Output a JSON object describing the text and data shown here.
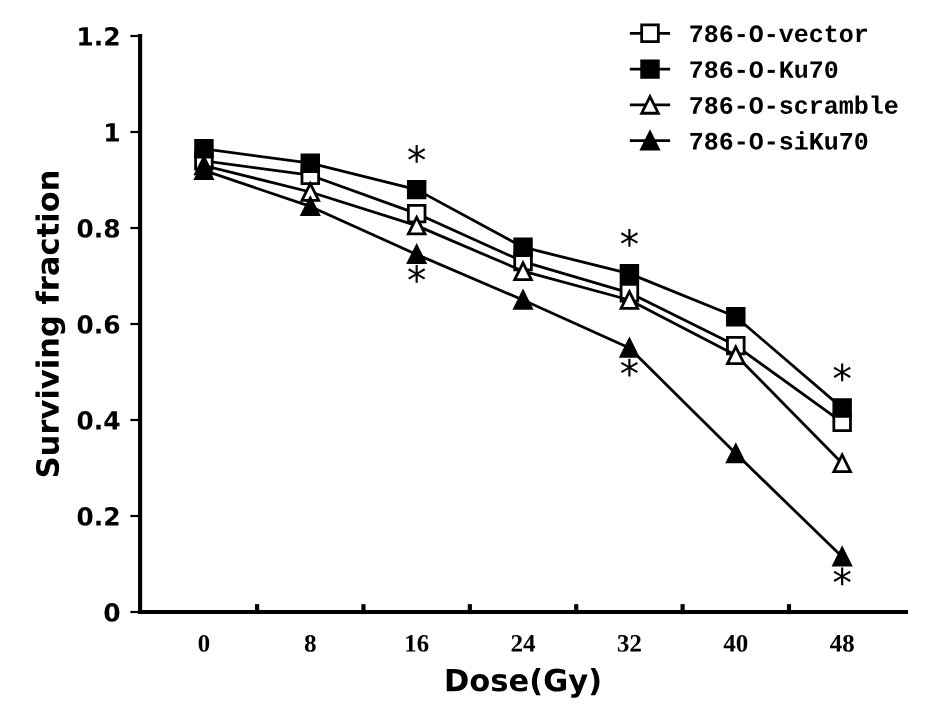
{
  "chart_data": {
    "type": "line",
    "xlabel": "Dose(Gy)",
    "ylabel": "Surviving fraction",
    "categories": [
      "0",
      "8",
      "16",
      "24",
      "32",
      "40",
      "48"
    ],
    "ylim": [
      0,
      1.2
    ],
    "yticks": [
      0,
      0.2,
      0.4,
      0.6,
      0.8,
      1,
      1.2
    ],
    "grid": false,
    "legend": "top right",
    "line_style": "solid",
    "series": [
      {
        "name": "786-O-vector",
        "color": "#000000",
        "marker": "square",
        "values": [
          0.94,
          0.91,
          0.83,
          0.73,
          0.665,
          0.555,
          0.395
        ]
      },
      {
        "name": "786-O-Ku70",
        "color": "#000000",
        "marker": "square",
        "values": [
          0.965,
          0.935,
          0.88,
          0.76,
          0.705,
          0.615,
          0.425
        ]
      },
      {
        "name": "786-O-scramble",
        "color": "#000000",
        "marker": "triangle",
        "values": [
          0.93,
          0.875,
          0.805,
          0.71,
          0.65,
          0.535,
          0.31
        ]
      },
      {
        "name": "786-O-siKu70",
        "color": "#000000",
        "marker": "triangle",
        "values": [
          0.92,
          0.845,
          0.745,
          0.65,
          0.55,
          0.33,
          0.115
        ]
      }
    ],
    "annotations": [
      {
        "text": "*",
        "x": "16",
        "y": 0.88
      },
      {
        "text": "*",
        "x": "16",
        "y": 0.745
      },
      {
        "text": "*",
        "x": "32",
        "y": 0.705
      },
      {
        "text": "*",
        "x": "32",
        "y": 0.55
      },
      {
        "text": "*",
        "x": "48",
        "y": 0.425
      },
      {
        "text": "*",
        "x": "48",
        "y": 0.115
      }
    ]
  }
}
